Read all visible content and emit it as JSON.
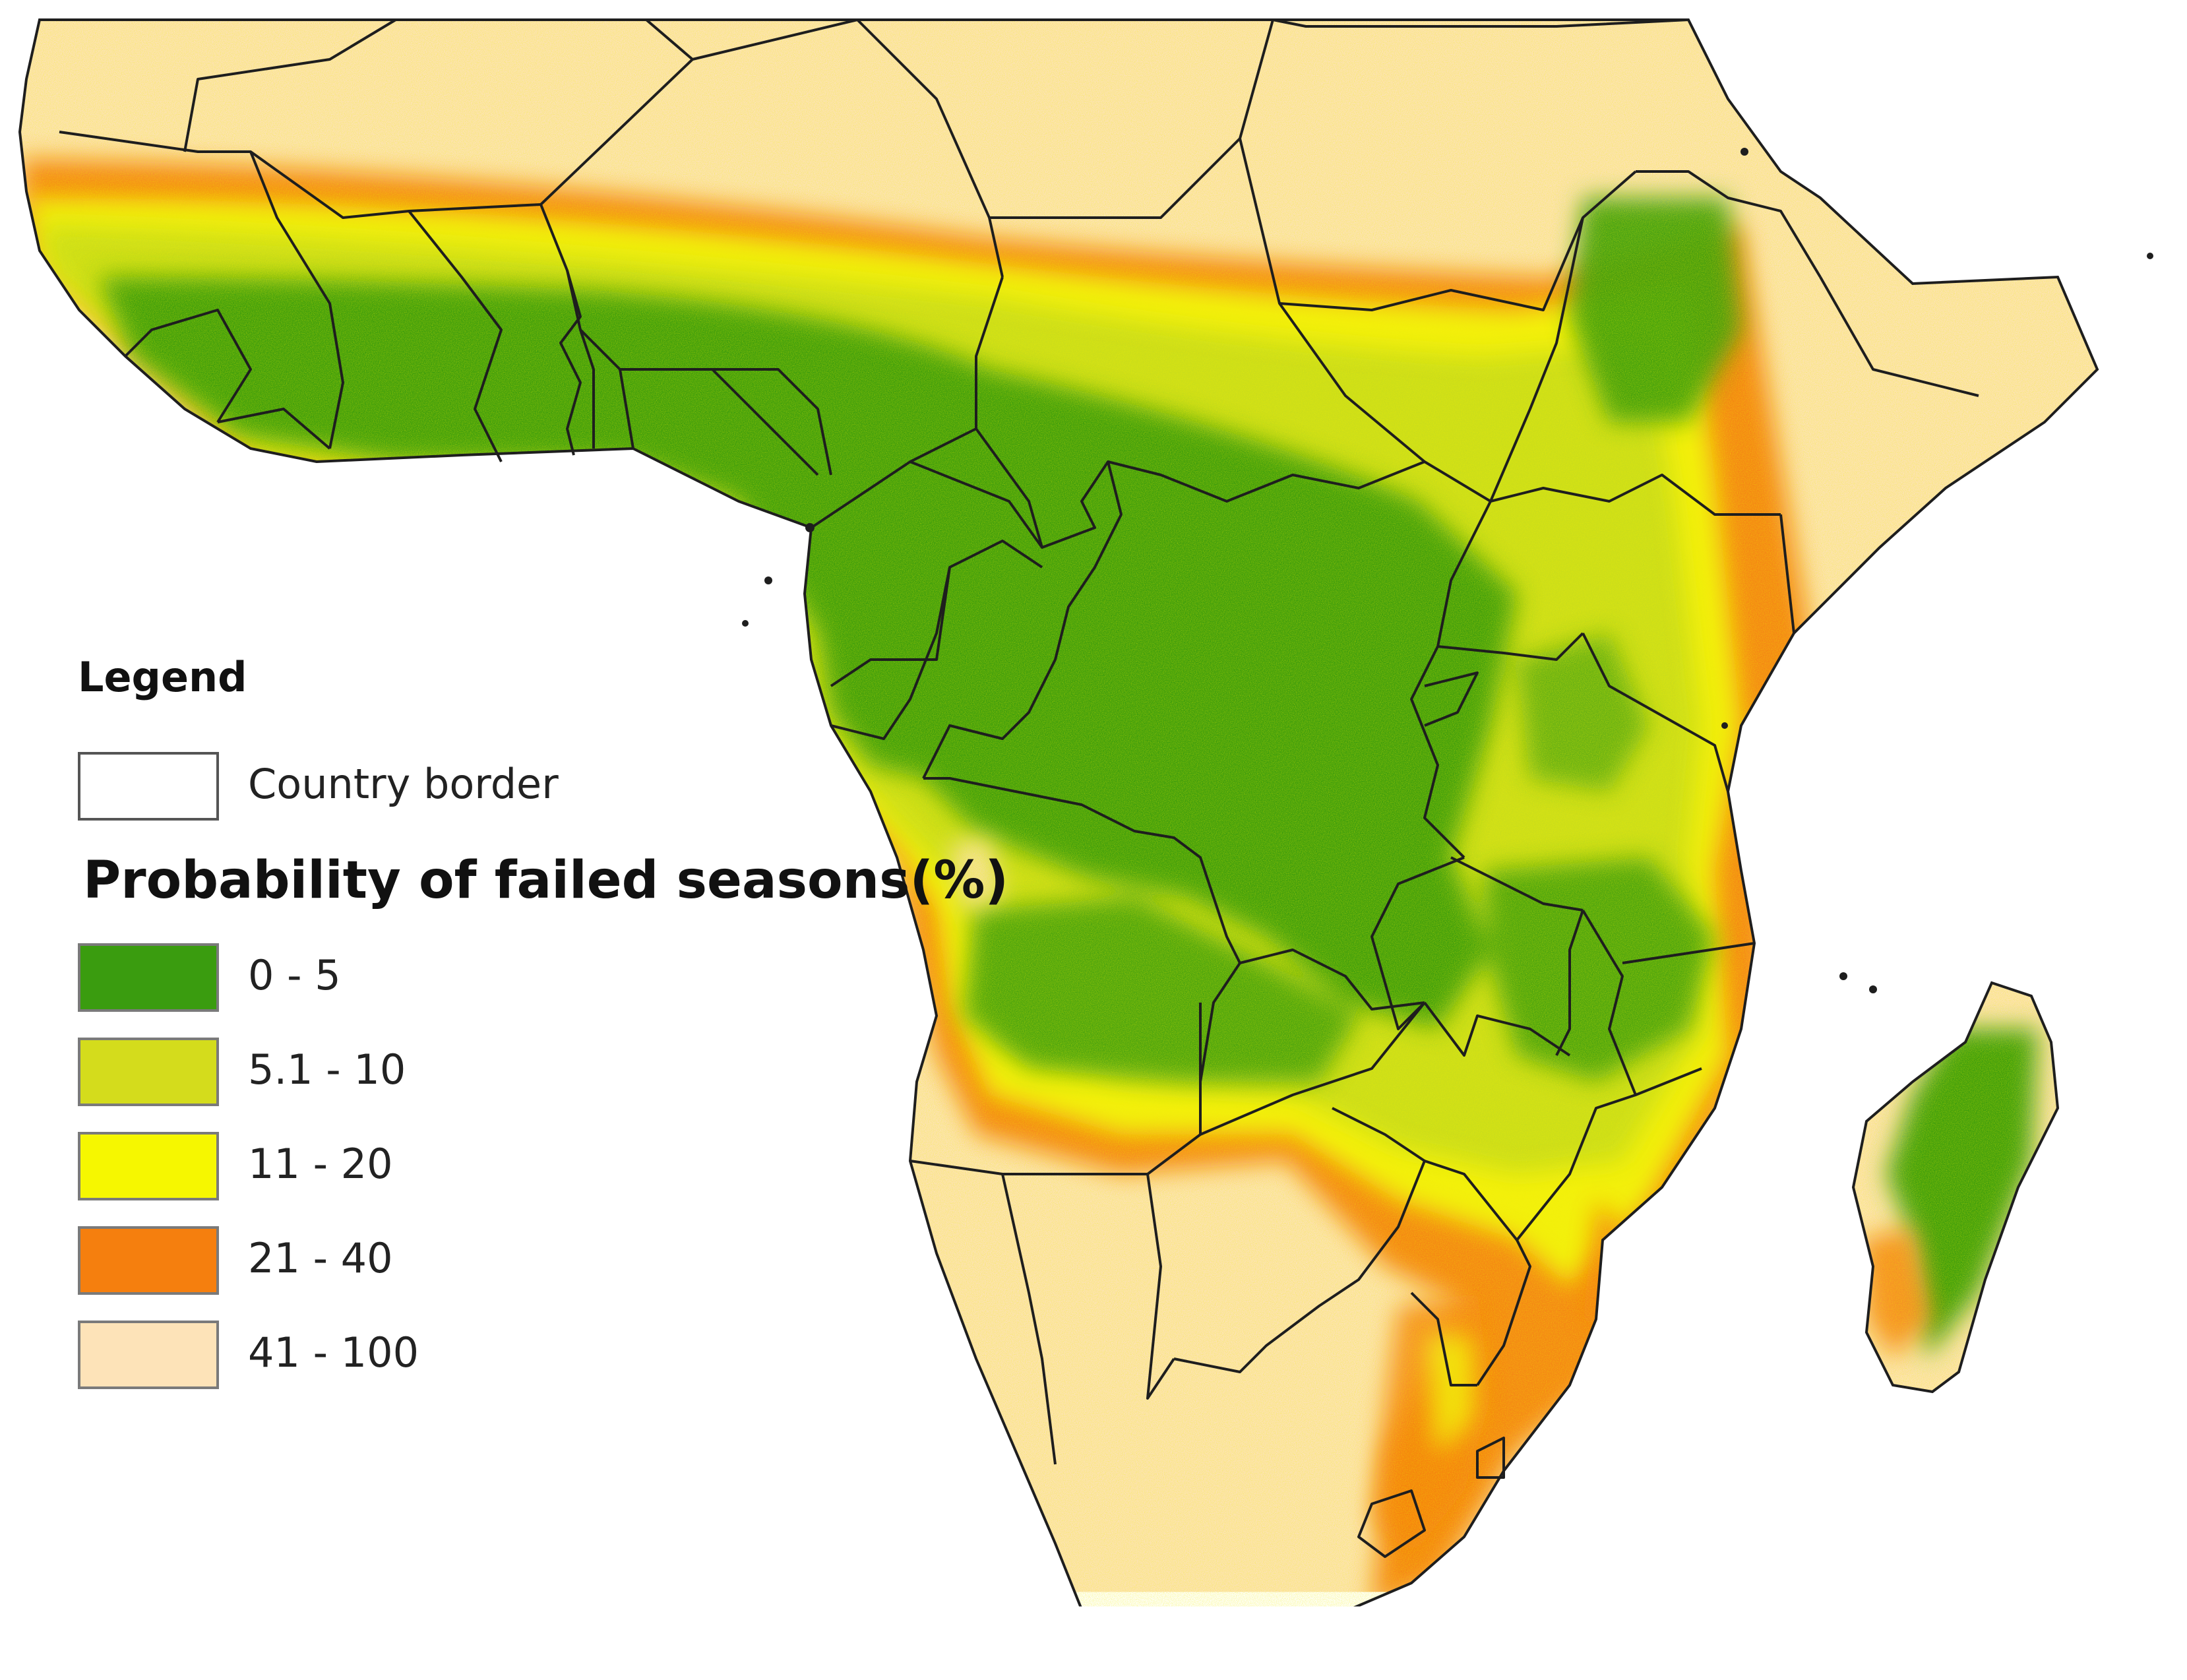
{
  "legend": {
    "title": "Legend",
    "border_label": "Country border",
    "heading": "Probability of failed seasons(%)",
    "classes": [
      {
        "label": "0 - 5",
        "color": "#3a9c0f"
      },
      {
        "label": "5.1 - 10",
        "color": "#d4dc1c"
      },
      {
        "label": "11 - 20",
        "color": "#f6f700"
      },
      {
        "label": "21 - 40",
        "color": "#f57f0e"
      },
      {
        "label": "41 - 100",
        "color": "#fde3b8"
      }
    ]
  },
  "map_colors": {
    "land": "#fde3b8",
    "green": "#3a9c0f",
    "yellow_green": "#c8dc1a",
    "yellow": "#f3f00a",
    "orange": "#f57f0e",
    "border": "#1e1e1e",
    "sea": "#ffffff"
  }
}
